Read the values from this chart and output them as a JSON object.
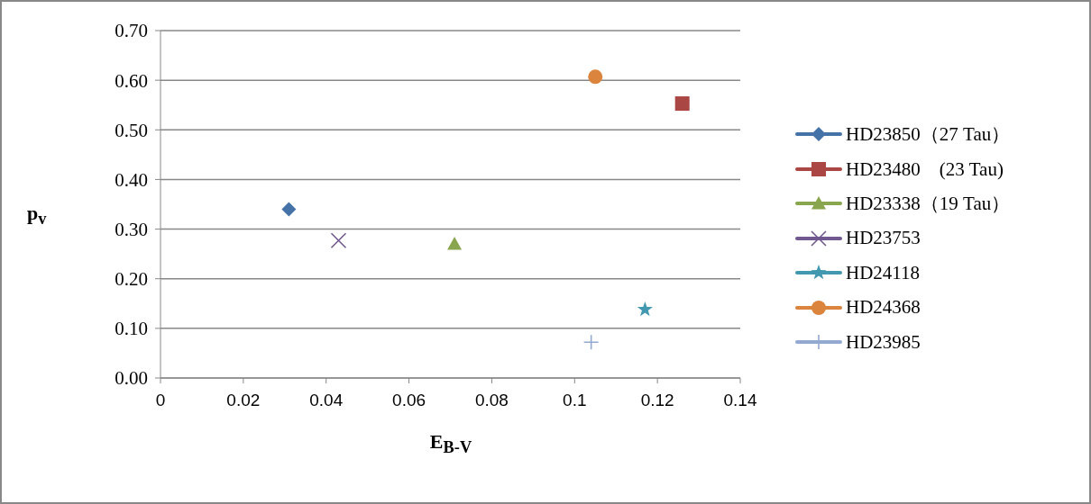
{
  "chart_data": {
    "type": "scatter",
    "xlabel": "E$_{B-V}$",
    "ylabel": "p$_{v}$",
    "xlim": [
      0,
      0.14
    ],
    "xticks": [
      0,
      0.02,
      0.04,
      0.06,
      0.08,
      0.1,
      0.12,
      0.14
    ],
    "ylim": [
      0,
      0.7
    ],
    "yticks": [
      {
        "value": 0,
        "label": "0.00"
      },
      {
        "value": 0.1,
        "label": "0.10"
      },
      {
        "value": 0.2,
        "label": "0.20"
      },
      {
        "value": 0.3,
        "label": "0.30"
      },
      {
        "value": 0.4,
        "label": "0.40"
      },
      {
        "value": 0.5,
        "label": "0.50"
      },
      {
        "value": 0.6,
        "label": "0.60"
      },
      {
        "value": 0.7,
        "label": "0.70"
      }
    ],
    "grid": "y",
    "legend": "right",
    "series": [
      {
        "name": "HD23850（27 Tau）",
        "color": "#4572a7",
        "marker": "diamond",
        "x": [
          0.031
        ],
        "values": [
          0.34
        ]
      },
      {
        "name": "HD23480　(23 Tau)",
        "color": "#aa4643",
        "marker": "square",
        "x": [
          0.126
        ],
        "values": [
          0.553
        ]
      },
      {
        "name": "HD23338（19 Tau）",
        "color": "#89a54e",
        "marker": "triangle",
        "x": [
          0.071
        ],
        "values": [
          0.27
        ]
      },
      {
        "name": "HD23753",
        "color": "#71588f",
        "marker": "cross",
        "x": [
          0.043
        ],
        "values": [
          0.277
        ]
      },
      {
        "name": "HD24118",
        "color": "#4198af",
        "marker": "star",
        "x": [
          0.117
        ],
        "values": [
          0.138
        ]
      },
      {
        "name": "HD24368",
        "color": "#db843d",
        "marker": "circle",
        "x": [
          0.105
        ],
        "values": [
          0.607
        ]
      },
      {
        "name": "HD23985",
        "color": "#93a9cf",
        "marker": "plus",
        "x": [
          0.104
        ],
        "values": [
          0.072
        ]
      }
    ]
  }
}
